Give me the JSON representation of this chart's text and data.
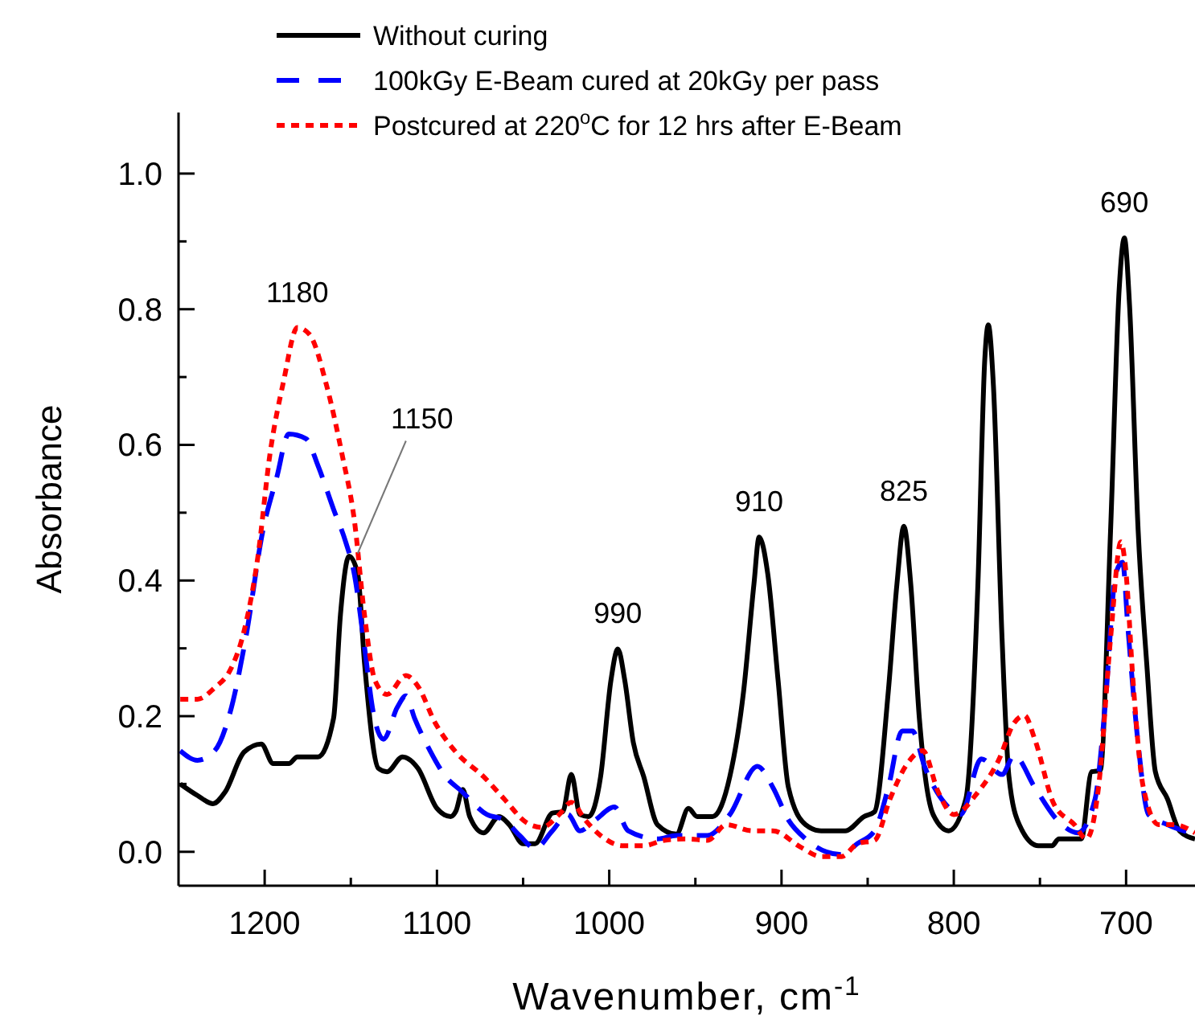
{
  "chart_data": {
    "type": "line",
    "xlabel": "Wavenumber, cm$^{-1}$",
    "ylabel": "Absorbance",
    "xlim": [
      1250,
      660
    ],
    "ylim": [
      -0.05,
      1.09
    ],
    "xticks": [
      1200,
      {
        "value": 1150,
        "label": null
      },
      1100,
      {
        "value": 1050,
        "label": null
      },
      1000,
      {
        "value": 950,
        "label": null
      },
      900,
      {
        "value": 850,
        "label": null
      },
      800,
      {
        "value": 750,
        "label": null
      },
      700
    ],
    "yticks": [
      {
        "value": 0,
        "label": "0.0"
      },
      {
        "value": 0.1,
        "label": null
      },
      0.2,
      {
        "value": 0.3,
        "label": null
      },
      0.4,
      {
        "value": 0.5,
        "label": null
      },
      0.6,
      {
        "value": 0.7,
        "label": null
      },
      0.8,
      {
        "value": 0.9,
        "label": null
      },
      {
        "value": 1,
        "label": "1.0"
      }
    ],
    "grid": false,
    "legend": "top",
    "marker": "none",
    "annotations": [
      {
        "text": "1180",
        "x": 1181,
        "y": 0.773
      },
      {
        "text": "1150",
        "x": 1146,
        "y": 0.44
      },
      {
        "text": "990",
        "x": 995,
        "y": 0.299
      },
      {
        "text": "910",
        "x": 913,
        "y": 0.464
      },
      {
        "text": "825",
        "x": 829,
        "y": 0.48
      },
      {
        "text": "690",
        "x": 701,
        "y": 0.905
      }
    ],
    "series": [
      {
        "name": "Without curing",
        "color": "#000000",
        "line_style": "solid",
        "x": [
          1249,
          1239,
          1230,
          1223,
          1212,
          1202,
          1195,
          1186,
          1181,
          1169,
          1160,
          1156,
          1151,
          1146,
          1142,
          1134,
          1129,
          1120,
          1111,
          1100,
          1092,
          1089,
          1085,
          1081,
          1073,
          1064,
          1058,
          1050,
          1043,
          1033,
          1027,
          1022,
          1017,
          1012,
          1005,
          999,
          995,
          991,
          986,
          980,
          972,
          961,
          954,
          949,
          940,
          930,
          922,
          916,
          913,
          908,
          902,
          896,
          886,
          877,
          863,
          852,
          846,
          838,
          833,
          829,
          825,
          820,
          812,
          803,
          793,
          786,
          782,
          780,
          777,
          772,
          768,
          762,
          751,
          743,
          739,
          726,
          720,
          715,
          709,
          704,
          701,
          698,
          693,
          688,
          683,
          676,
          669,
          660
        ],
        "values": [
          0.1,
          0.083,
          0.071,
          0.088,
          0.147,
          0.159,
          0.13,
          0.13,
          0.14,
          0.14,
          0.197,
          0.35,
          0.436,
          0.41,
          0.277,
          0.123,
          0.118,
          0.14,
          0.123,
          0.064,
          0.052,
          0.06,
          0.092,
          0.052,
          0.028,
          0.052,
          0.04,
          0.012,
          0.012,
          0.057,
          0.059,
          0.114,
          0.055,
          0.052,
          0.111,
          0.253,
          0.299,
          0.253,
          0.161,
          0.111,
          0.04,
          0.026,
          0.064,
          0.052,
          0.052,
          0.111,
          0.237,
          0.395,
          0.464,
          0.41,
          0.253,
          0.095,
          0.04,
          0.031,
          0.031,
          0.052,
          0.059,
          0.237,
          0.395,
          0.48,
          0.395,
          0.197,
          0.055,
          0.031,
          0.078,
          0.395,
          0.727,
          0.777,
          0.687,
          0.315,
          0.111,
          0.04,
          0.009,
          0.009,
          0.019,
          0.019,
          0.118,
          0.12,
          0.474,
          0.83,
          0.905,
          0.806,
          0.474,
          0.277,
          0.118,
          0.078,
          0.031,
          0.019
        ]
      },
      {
        "name": "100kGy E-Beam cured at 20kGy per pass",
        "color": "#0000ff",
        "line_style": "dashed",
        "x": [
          1249,
          1239,
          1229,
          1220,
          1211,
          1201,
          1193,
          1186,
          1176,
          1169,
          1160,
          1153,
          1148,
          1142,
          1137,
          1131,
          1123,
          1118,
          1113,
          1104,
          1095,
          1086,
          1071,
          1061,
          1052,
          1043,
          1033,
          1024,
          1017,
          1008,
          997,
          989,
          972,
          961,
          943,
          930,
          914,
          905,
          896,
          886,
          874,
          865,
          856,
          846,
          838,
          830,
          824,
          817,
          805,
          796,
          784,
          772,
          765,
          753,
          740,
          728,
          718,
          712,
          706,
          702,
          699,
          693,
          687,
          676,
          660
        ],
        "values": [
          0.149,
          0.135,
          0.149,
          0.206,
          0.315,
          0.474,
          0.552,
          0.616,
          0.609,
          0.569,
          0.505,
          0.457,
          0.41,
          0.301,
          0.206,
          0.166,
          0.213,
          0.23,
          0.197,
          0.149,
          0.111,
          0.09,
          0.055,
          0.047,
          0.024,
          0.005,
          0.031,
          0.055,
          0.031,
          0.047,
          0.066,
          0.031,
          0.019,
          0.024,
          0.024,
          0.055,
          0.126,
          0.095,
          0.047,
          0.019,
          0.0,
          -0.004,
          0.012,
          0.031,
          0.095,
          0.178,
          0.178,
          0.126,
          0.071,
          0.055,
          0.137,
          0.114,
          0.142,
          0.095,
          0.047,
          0.028,
          0.078,
          0.22,
          0.41,
          0.427,
          0.332,
          0.159,
          0.055,
          0.04,
          0.026
        ]
      },
      {
        "name": "Postcured at 220$^{o}$C for 12 hrs after E-Beam",
        "color": "#ff0000",
        "line_style": "dotted",
        "x": [
          1249,
          1239,
          1229,
          1220,
          1212,
          1204,
          1197,
          1189,
          1181,
          1174,
          1164,
          1155,
          1148,
          1142,
          1136,
          1129,
          1118,
          1111,
          1101,
          1089,
          1073,
          1061,
          1048,
          1039,
          1029,
          1022,
          1014,
          1005,
          992,
          980,
          968,
          955,
          943,
          932,
          917,
          905,
          889,
          877,
          865,
          856,
          846,
          837,
          828,
          818,
          809,
          800,
          786,
          774,
          765,
          759,
          753,
          742,
          730,
          723,
          716,
          709,
          703,
          700,
          696,
          690,
          681,
          672,
          660
        ],
        "values": [
          0.225,
          0.225,
          0.242,
          0.268,
          0.325,
          0.434,
          0.585,
          0.694,
          0.773,
          0.763,
          0.687,
          0.585,
          0.49,
          0.348,
          0.253,
          0.232,
          0.26,
          0.244,
          0.19,
          0.147,
          0.111,
          0.078,
          0.043,
          0.036,
          0.055,
          0.073,
          0.047,
          0.024,
          0.009,
          0.009,
          0.017,
          0.019,
          0.017,
          0.04,
          0.031,
          0.031,
          0.007,
          -0.007,
          -0.007,
          0.012,
          0.017,
          0.078,
          0.126,
          0.149,
          0.088,
          0.055,
          0.088,
          0.135,
          0.19,
          0.201,
          0.166,
          0.071,
          0.04,
          0.019,
          0.095,
          0.315,
          0.457,
          0.41,
          0.253,
          0.095,
          0.04,
          0.04,
          0.028
        ]
      }
    ]
  }
}
